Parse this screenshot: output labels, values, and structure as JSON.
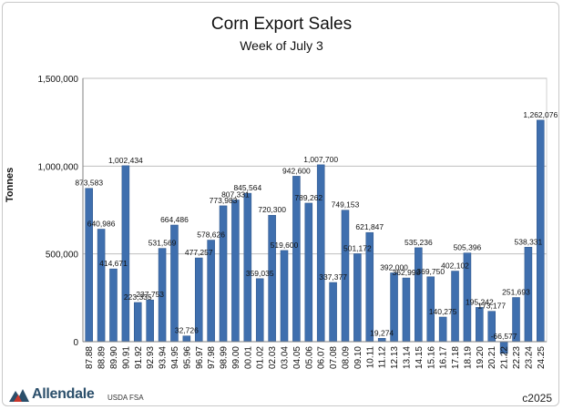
{
  "chart_data": {
    "type": "bar",
    "title": "Corn Export Sales",
    "subtitle": "Week of July 3",
    "ylabel": "Tonnes",
    "xlabel": "",
    "ylim": [
      0,
      1500000
    ],
    "yticks": [
      0,
      500000,
      1000000,
      1500000
    ],
    "ytick_labels": [
      "0",
      "500,000",
      "1,000,000",
      "1,500,000"
    ],
    "grid": true,
    "bar_color": "#3f6fae",
    "categories": [
      "87.88",
      "88.89",
      "89.90",
      "90.91",
      "91.92",
      "92.93",
      "93.94",
      "94.95",
      "95.96",
      "96.97",
      "97.98",
      "98.99",
      "99.00",
      "00.01",
      "01.02",
      "02.03",
      "03.04",
      "04.05",
      "05.06",
      "06.07",
      "07.08",
      "08.09",
      "09.10",
      "10.11",
      "11.12",
      "12.13",
      "13.14",
      "14.15",
      "15.16",
      "16.17",
      "17.18",
      "18.19",
      "19.20",
      "20.21",
      "21.22",
      "22.23",
      "23.24",
      "24.25"
    ],
    "values": [
      873583,
      640986,
      414671,
      1002434,
      223335,
      237753,
      531569,
      664486,
      32726,
      477257,
      578626,
      773983,
      807331,
      845564,
      359035,
      720300,
      519600,
      942600,
      789262,
      1007700,
      337377,
      749153,
      501172,
      621847,
      19274,
      392000,
      362998,
      535236,
      369750,
      140275,
      402102,
      505396,
      195242,
      173177,
      -66577,
      251693,
      538331,
      1262076
    ],
    "value_labels": [
      "873,583",
      "640,986",
      "414,671",
      "1,002,434",
      "223,335",
      "237,753",
      "531,569",
      "664,486",
      "32,726",
      "477,257",
      "578,626",
      "773,983",
      "807,331",
      "845,564",
      "359,035",
      "720,300",
      "519,600",
      "942,600",
      "789,262",
      "1,007,700",
      "337,377",
      "749,153",
      "501,172",
      "621,847",
      "19,274",
      "392,000",
      "362,998",
      "535,236",
      "369,750",
      "140,275",
      "402,102",
      "505,396",
      "195,242",
      "173,177",
      "-66,577",
      "251,693",
      "538,331",
      "1,262,076"
    ]
  },
  "footer": {
    "logo_text": "Allendale",
    "source": "USDA FSA",
    "copyright": "c2025"
  },
  "colors": {
    "bar": "#3f6fae",
    "bar_edge": "#2b5388",
    "grid": "#bfbfbf"
  }
}
